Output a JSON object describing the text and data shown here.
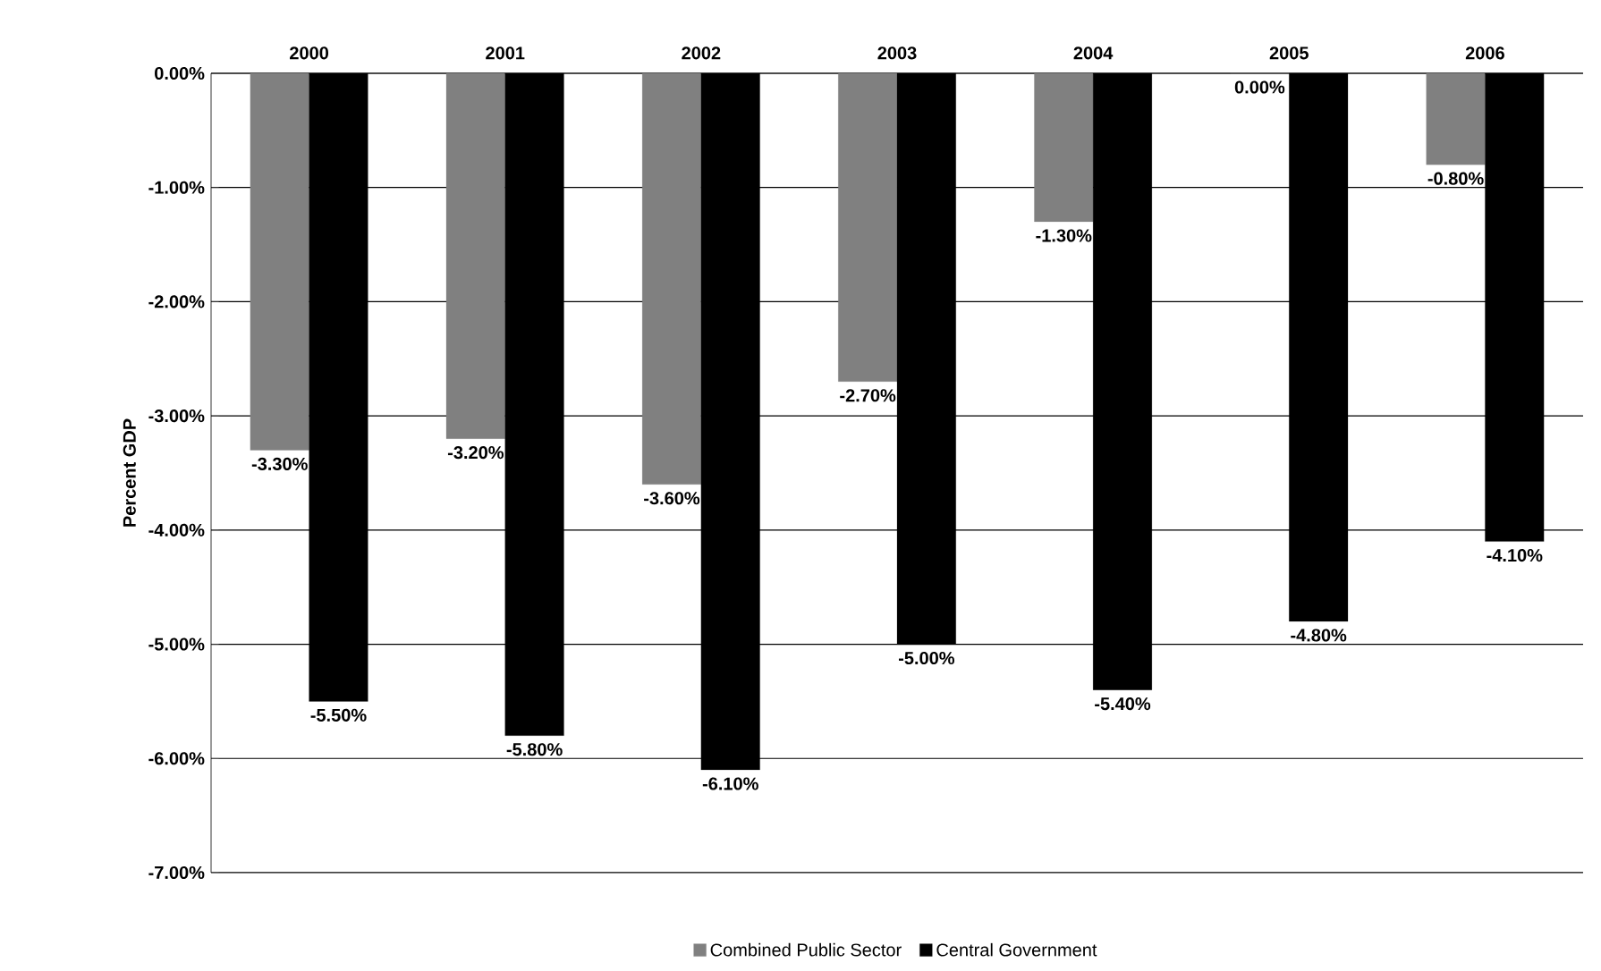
{
  "chart_data": {
    "type": "bar",
    "ylabel": "Percent GDP",
    "categories": [
      "2000",
      "2001",
      "2002",
      "2003",
      "2004",
      "2005",
      "2006"
    ],
    "series": [
      {
        "name": "Combined Public Sector",
        "color": "#808080",
        "values": [
          -3.3,
          -3.2,
          -3.6,
          -2.7,
          -1.3,
          0,
          -0.8
        ],
        "value_labels": [
          "-3.30%",
          "-3.20%",
          "-3.60%",
          "-2.70%",
          "-1.30%",
          "0.00%",
          "-0.80%"
        ]
      },
      {
        "name": "Central Government",
        "color": "#000000",
        "values": [
          -5.5,
          -5.8,
          -6.1,
          -5.0,
          -5.4,
          -4.8,
          -4.1
        ],
        "value_labels": [
          "-5.50%",
          "-5.80%",
          "-6.10%",
          "-5.00%",
          "-5.40%",
          "-4.80%",
          "-4.10%"
        ]
      }
    ],
    "ylim": [
      -7,
      0
    ],
    "yticks": [
      {
        "value": 0,
        "label": "0.00%"
      },
      {
        "value": -1,
        "label": "-1.00%"
      },
      {
        "value": -2,
        "label": "-2.00%"
      },
      {
        "value": -3,
        "label": "-3.00%"
      },
      {
        "value": -4,
        "label": "-4.00%"
      },
      {
        "value": -5,
        "label": "-5.00%"
      },
      {
        "value": -6,
        "label": "-6.00%"
      },
      {
        "value": -7,
        "label": "-7.00%"
      }
    ],
    "grid": "y",
    "legend": "bottom"
  }
}
